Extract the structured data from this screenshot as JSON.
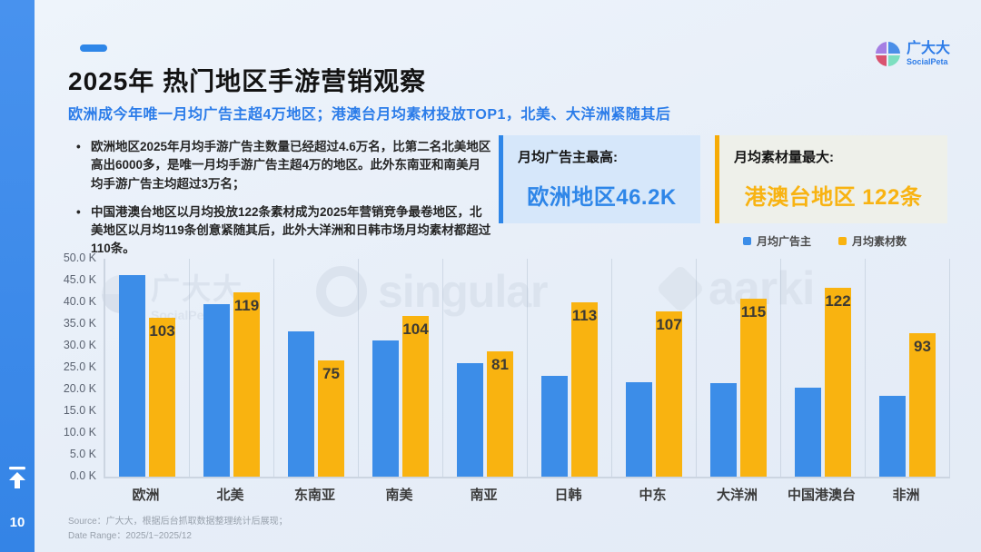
{
  "page_number": "10",
  "brand": {
    "name": "广大大",
    "subname": "SocialPeta"
  },
  "title": "2025年 热门地区手游营销观察",
  "subtitle": "欧洲成今年唯一月均广告主超4万地区；港澳台月均素材投放TOP1，北美、大洋洲紧随其后",
  "bullets": [
    "欧洲地区2025年月均手游广告主数量已经超过4.6万名，比第二名北美地区高出6000多，是唯一月均手游广告主超4万的地区。此外东南亚和南美月均手游广告主均超过3万名；",
    "中国港澳台地区以月均投放122条素材成为2025年营销竞争最卷地区，北美地区以月均119条创意紧随其后，此外大洋洲和日韩市场月均素材都超过110条。"
  ],
  "highlights": [
    {
      "label": "月均广告主最高:",
      "value": "欧洲地区46.2K",
      "accent": "#2E86E8"
    },
    {
      "label": "月均素材量最大:",
      "value": "港澳台地区 122条",
      "accent": "#F6AB07"
    }
  ],
  "legend": [
    {
      "label": "月均广告主",
      "color": "#3C8DE8"
    },
    {
      "label": "月均素材数",
      "color": "#F9B310"
    }
  ],
  "chart_data": {
    "type": "bar",
    "categories": [
      "欧洲",
      "北美",
      "东南亚",
      "南美",
      "南亚",
      "日韩",
      "中东",
      "大洋洲",
      "中国港澳台",
      "非洲"
    ],
    "series": [
      {
        "name": "月均广告主",
        "unit": "K",
        "color": "#3C8DE8",
        "axis": "left",
        "values": [
          46.2,
          39.6,
          33.4,
          31.2,
          26.0,
          23.2,
          21.6,
          21.4,
          20.4,
          18.6
        ]
      },
      {
        "name": "月均素材数",
        "unit": "条",
        "color": "#F9B310",
        "axis": "hidden-secondary",
        "data_labels": true,
        "values": [
          103,
          119,
          75,
          104,
          81,
          113,
          107,
          115,
          122,
          93
        ]
      }
    ],
    "y_axis": {
      "min": 0,
      "max": 50,
      "ticks": [
        "50.0 K",
        "45.0 K",
        "40.0 K",
        "35.0 K",
        "30.0 K",
        "25.0 K",
        "20.0 K",
        "15.0 K",
        "10.0 K",
        "5.0 K",
        "0.0 K"
      ]
    },
    "secondary_axis": {
      "visible": false,
      "implied_max": 141
    },
    "grid": "vertical",
    "legend_position": "top-right"
  },
  "watermarks": [
    {
      "text": "广大大",
      "sub": "SocialPeta",
      "icon": "socialpeta-quadrant-logo"
    },
    {
      "text": "singular",
      "icon": "shutter-ring-logo"
    },
    {
      "text": "aarki",
      "icon": "diamond-logo"
    }
  ],
  "source": {
    "line1": "Source：广大大，根据后台抓取数据整理统计后展现；",
    "line2": "Date Range：2025/1~2025/12"
  },
  "colors": {
    "sidebar": "#3B8CEA",
    "subtitle": "#2B7CE9",
    "background": "#E9EFF8"
  }
}
